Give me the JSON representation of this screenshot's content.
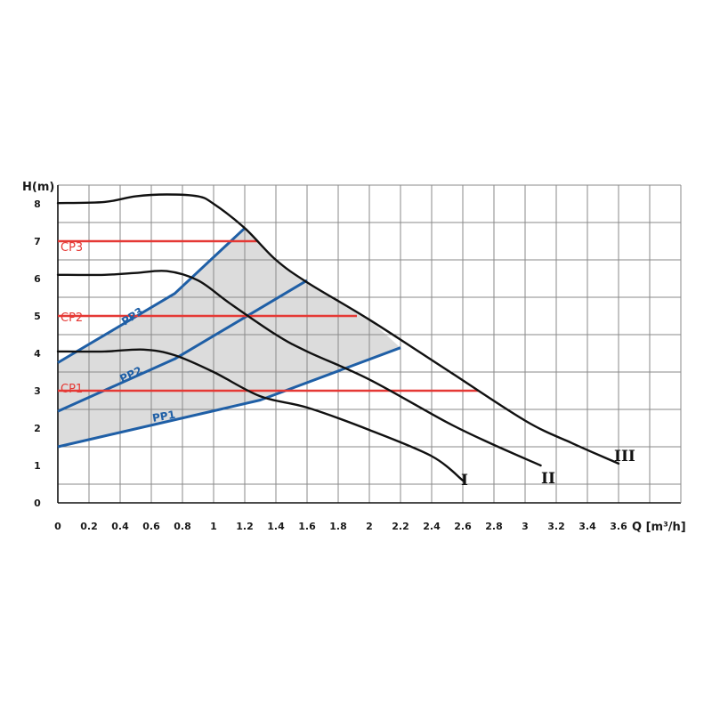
{
  "chart_data": {
    "type": "line",
    "xlabel": "Q [m³/h]",
    "ylabel": "H(m)",
    "xlim": [
      0,
      4
    ],
    "ylim": [
      0,
      8.5
    ],
    "x_ticks": [
      "0",
      "0.2",
      "0.4",
      "0.6",
      "0.8",
      "1",
      "1.2",
      "1.4",
      "1.6",
      "1.8",
      "2",
      "2.2",
      "2.4",
      "2.6",
      "2.8",
      "3",
      "3.2",
      "3.4",
      "3.6"
    ],
    "y_ticks": [
      "0",
      "1",
      "2",
      "3",
      "4",
      "5",
      "6",
      "7",
      "8"
    ],
    "grid": true,
    "colors": {
      "curve": "#111111",
      "constant_pressure": "#e53935",
      "proportional_pressure": "#1f5fa6",
      "region_fill": "#dcdcdc",
      "grid": "#8a8a8a"
    },
    "speed_curves": [
      {
        "name": "I",
        "points": [
          [
            0,
            4.05
          ],
          [
            0.3,
            4.05
          ],
          [
            0.55,
            4.1
          ],
          [
            0.75,
            3.95
          ],
          [
            1.0,
            3.5
          ],
          [
            1.3,
            2.85
          ],
          [
            1.6,
            2.55
          ],
          [
            2.0,
            1.95
          ],
          [
            2.4,
            1.25
          ],
          [
            2.6,
            0.6
          ]
        ]
      },
      {
        "name": "II",
        "points": [
          [
            0,
            6.1
          ],
          [
            0.3,
            6.1
          ],
          [
            0.5,
            6.15
          ],
          [
            0.7,
            6.2
          ],
          [
            0.9,
            5.95
          ],
          [
            1.1,
            5.35
          ],
          [
            1.4,
            4.5
          ],
          [
            1.6,
            4.05
          ],
          [
            2.0,
            3.3
          ],
          [
            2.5,
            2.15
          ],
          [
            2.8,
            1.55
          ],
          [
            3.1,
            1.0
          ]
        ]
      },
      {
        "name": "III",
        "points": [
          [
            0,
            8.02
          ],
          [
            0.3,
            8.05
          ],
          [
            0.5,
            8.2
          ],
          [
            0.7,
            8.25
          ],
          [
            0.9,
            8.2
          ],
          [
            1.0,
            8.0
          ],
          [
            1.2,
            7.35
          ],
          [
            1.4,
            6.5
          ],
          [
            1.6,
            5.9
          ],
          [
            2.0,
            4.9
          ],
          [
            2.5,
            3.55
          ],
          [
            3.0,
            2.2
          ],
          [
            3.3,
            1.6
          ],
          [
            3.6,
            1.05
          ]
        ]
      }
    ],
    "constant_pressure": [
      {
        "name": "CP1",
        "y": 3,
        "x_end": 2.7
      },
      {
        "name": "CP2",
        "y": 5,
        "x_end": 1.92
      },
      {
        "name": "CP3",
        "y": 7,
        "x_end": 1.28
      }
    ],
    "proportional_pressure": [
      {
        "name": "PP1",
        "points": [
          [
            0,
            1.5
          ],
          [
            1.3,
            2.75
          ],
          [
            2.2,
            4.15
          ]
        ]
      },
      {
        "name": "PP2",
        "points": [
          [
            0,
            2.45
          ],
          [
            0.75,
            3.85
          ],
          [
            1.6,
            5.95
          ]
        ]
      },
      {
        "name": "PP3",
        "points": [
          [
            0,
            3.75
          ],
          [
            0.75,
            5.6
          ],
          [
            1.2,
            7.35
          ]
        ]
      }
    ]
  },
  "curve_labels": {
    "I": "I",
    "II": "II",
    "III": "III"
  },
  "line_labels": {
    "CP1": "CP1",
    "CP2": "CP2",
    "CP3": "CP3",
    "PP1": "PP1",
    "PP2": "PP2",
    "PP3": "PP3"
  }
}
